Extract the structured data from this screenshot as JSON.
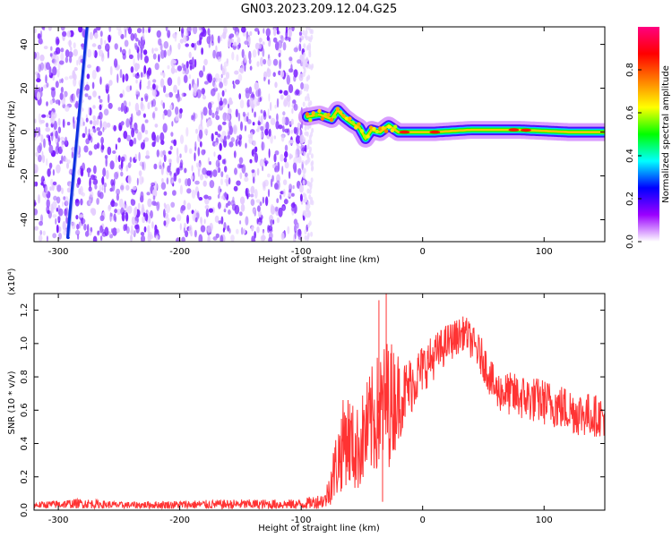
{
  "chart_data": [
    {
      "type": "heatmap",
      "title": "GN03.2023.209.12.04.G25",
      "xlabel": "Height of straight line (km)",
      "ylabel": "Frequency (Hz)",
      "xlim": [
        -320,
        150
      ],
      "ylim": [
        -50,
        48
      ],
      "xticks": [
        -300,
        -200,
        -100,
        0,
        100
      ],
      "yticks": [
        -40,
        -20,
        0,
        20,
        40
      ],
      "colorbar": {
        "label": "Normalized spectral amplitude",
        "range": [
          0,
          1
        ],
        "ticks": [
          "0.0",
          "0.2",
          "0.4",
          "0.6",
          "0.8"
        ],
        "colormap": [
          "#ffffff",
          "#9b00ff",
          "#0000ff",
          "#00ffff",
          "#00ff00",
          "#ffff00",
          "#ff7f00",
          "#ff0000",
          "#ff0080"
        ]
      },
      "features": {
        "noise_region_x": [
          -320,
          -95
        ],
        "noise_color": "#7a1fff",
        "meteor_head_streak": {
          "x": [
            -292,
            -276
          ],
          "y": [
            -48,
            48
          ]
        },
        "signal_trace": [
          {
            "x": -95,
            "y": 7
          },
          {
            "x": -85,
            "y": 8
          },
          {
            "x": -75,
            "y": 6
          },
          {
            "x": -70,
            "y": 10
          },
          {
            "x": -65,
            "y": 7
          },
          {
            "x": -58,
            "y": 4
          },
          {
            "x": -52,
            "y": 2
          },
          {
            "x": -47,
            "y": -3
          },
          {
            "x": -42,
            "y": 1
          },
          {
            "x": -35,
            "y": 0
          },
          {
            "x": -28,
            "y": 3
          },
          {
            "x": -20,
            "y": 0
          },
          {
            "x": -10,
            "y": 0
          },
          {
            "x": 10,
            "y": 0
          },
          {
            "x": 40,
            "y": 1
          },
          {
            "x": 80,
            "y": 1
          },
          {
            "x": 120,
            "y": 0
          },
          {
            "x": 150,
            "y": 0
          }
        ],
        "signal_peaks_x": [
          -15,
          10,
          75,
          85
        ]
      }
    },
    {
      "type": "line",
      "xlabel": "Height of straight line (km)",
      "ylabel": "SNR (10 * v/v)",
      "ylabel_multiplier": "(x10⁴)",
      "xlim": [
        -320,
        150
      ],
      "ylim": [
        0,
        1.3
      ],
      "xticks": [
        -300,
        -200,
        -100,
        0,
        100
      ],
      "yticks": [
        "0.0",
        "0.2",
        "0.4",
        "0.6",
        "0.8",
        "1.0",
        "1.2"
      ],
      "ytick_values": [
        0,
        0.2,
        0.4,
        0.6,
        0.8,
        1.0,
        1.2
      ],
      "series_color": "#ff3333",
      "envelope": [
        {
          "x": -320,
          "mean": 0.03,
          "amp": 0.02
        },
        {
          "x": -280,
          "mean": 0.04,
          "amp": 0.03
        },
        {
          "x": -250,
          "mean": 0.03,
          "amp": 0.02
        },
        {
          "x": -150,
          "mean": 0.035,
          "amp": 0.03
        },
        {
          "x": -100,
          "mean": 0.035,
          "amp": 0.03
        },
        {
          "x": -80,
          "mean": 0.06,
          "amp": 0.05
        },
        {
          "x": -72,
          "mean": 0.25,
          "amp": 0.2
        },
        {
          "x": -63,
          "mean": 0.45,
          "amp": 0.3
        },
        {
          "x": -55,
          "mean": 0.35,
          "amp": 0.25
        },
        {
          "x": -40,
          "mean": 0.55,
          "amp": 0.35
        },
        {
          "x": -28,
          "mean": 0.65,
          "amp": 0.4
        },
        {
          "x": -15,
          "mean": 0.7,
          "amp": 0.2
        },
        {
          "x": 0,
          "mean": 0.85,
          "amp": 0.15
        },
        {
          "x": 20,
          "mean": 1.0,
          "amp": 0.12
        },
        {
          "x": 35,
          "mean": 1.07,
          "amp": 0.1
        },
        {
          "x": 50,
          "mean": 0.9,
          "amp": 0.12
        },
        {
          "x": 60,
          "mean": 0.72,
          "amp": 0.12
        },
        {
          "x": 80,
          "mean": 0.68,
          "amp": 0.14
        },
        {
          "x": 100,
          "mean": 0.65,
          "amp": 0.14
        },
        {
          "x": 130,
          "mean": 0.58,
          "amp": 0.14
        },
        {
          "x": 150,
          "mean": 0.56,
          "amp": 0.12
        }
      ],
      "spikes": [
        {
          "x": -36,
          "y": 1.26
        },
        {
          "x": -30,
          "y": 1.3
        },
        {
          "x": -33,
          "y": 0.05
        }
      ]
    }
  ]
}
